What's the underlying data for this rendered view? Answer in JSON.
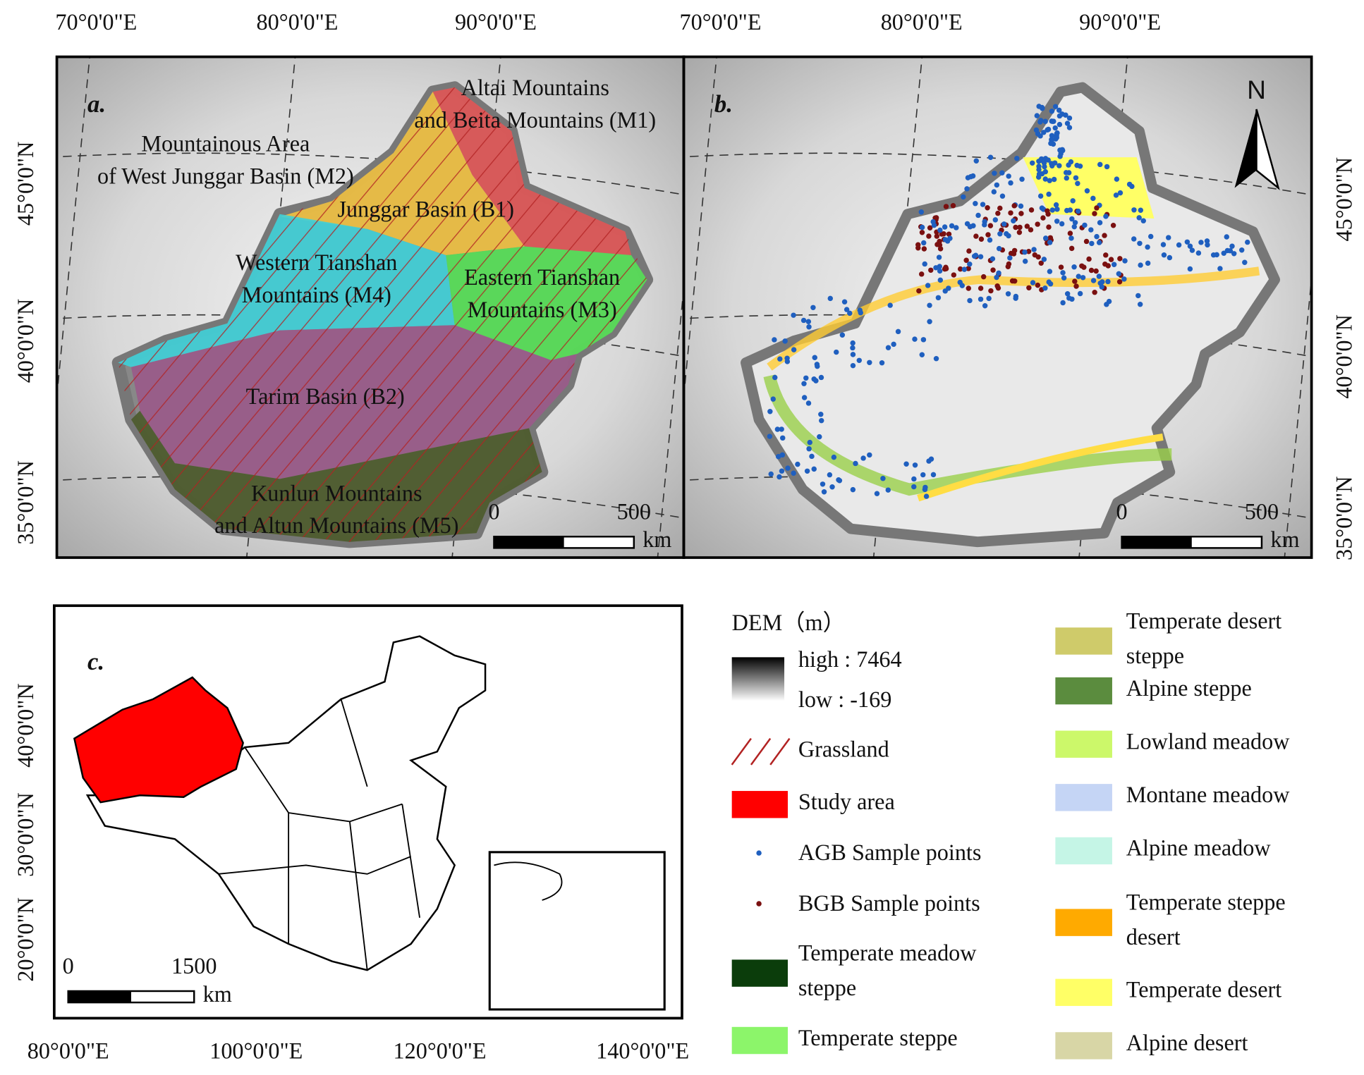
{
  "panel_a": {
    "label": "a.",
    "top_ticks": [
      "70°0'0\"E",
      "80°0'0\"E",
      "90°0'0\"E"
    ],
    "left_ticks": [
      "45°0'0\"N",
      "40°0'0\"N",
      "35°0'0\"N"
    ],
    "regions": [
      {
        "lines": [
          "Altai Mountains",
          "and Beita Mountains (M1)"
        ]
      },
      {
        "lines": [
          "Mountainous Area",
          "of West Junggar Basin (M2)"
        ]
      },
      {
        "lines": [
          "Junggar Basin (B1)"
        ]
      },
      {
        "lines": [
          "Western Tianshan",
          "Mountains (M4)"
        ]
      },
      {
        "lines": [
          "Eastern Tianshan",
          "Mountains (M3)"
        ]
      },
      {
        "lines": [
          "Tarim Basin (B2)"
        ]
      },
      {
        "lines": [
          "Kunlun Mountains",
          "and Altun Mountains (M5)"
        ]
      }
    ],
    "scale": {
      "zero": "0",
      "max": "500",
      "unit": "km"
    }
  },
  "panel_b": {
    "label": "b.",
    "top_ticks": [
      "70°0'0\"E",
      "80°0'0\"E",
      "90°0'0\"E"
    ],
    "right_ticks": [
      "45°0'0\"N",
      "40°0'0\"N",
      "35°0'0\"N"
    ],
    "north": "N",
    "scale": {
      "zero": "0",
      "max": "500",
      "unit": "km"
    }
  },
  "panel_c": {
    "label": "c.",
    "left_ticks": [
      "40°0'0\"N",
      "30°0'0\"N",
      "20°0'0\"N"
    ],
    "bottom_ticks": [
      "80°0'0\"E",
      "100°0'0\"E",
      "120°0'0\"E",
      "140°0'0\"E"
    ],
    "scale": {
      "zero": "0",
      "max": "1500",
      "unit": "km"
    }
  },
  "legend": {
    "dem_title": "DEM（m）",
    "dem_high": "high : 7464",
    "dem_low": "low : -169",
    "left_items": [
      {
        "lines": [
          "Grassland"
        ],
        "kind": "hatch",
        "color": "#b22222"
      },
      {
        "lines": [
          "Study area"
        ],
        "kind": "box",
        "color": "#ff0000"
      },
      {
        "lines": [
          "AGB Sample points"
        ],
        "kind": "dot",
        "color": "#1f5fbf"
      },
      {
        "lines": [
          "BGB Sample points"
        ],
        "kind": "dot",
        "color": "#7a1010"
      },
      {
        "lines": [
          "Temperate meadow",
          " steppe"
        ],
        "kind": "box",
        "color": "#0b3d0b"
      },
      {
        "lines": [
          "Temperate steppe"
        ],
        "kind": "box",
        "color": "#8cf56a"
      }
    ],
    "right_items": [
      {
        "lines": [
          "Temperate desert",
          "steppe"
        ],
        "color": "#cfcb6a"
      },
      {
        "lines": [
          "Alpine steppe"
        ],
        "color": "#5b8c3e"
      },
      {
        "lines": [
          "Lowland meadow"
        ],
        "color": "#ccf86a"
      },
      {
        "lines": [
          "Montane meadow"
        ],
        "color": "#c5d5f5"
      },
      {
        "lines": [
          "Alpine meadow"
        ],
        "color": "#c5f5e6"
      },
      {
        "lines": [
          "Temperate steppe",
          "desert"
        ],
        "color": "#ffaa00"
      },
      {
        "lines": [
          "Temperate desert"
        ],
        "color": "#ffff66"
      },
      {
        "lines": [
          "Alpine desert"
        ],
        "color": "#d8d6a6"
      }
    ]
  }
}
